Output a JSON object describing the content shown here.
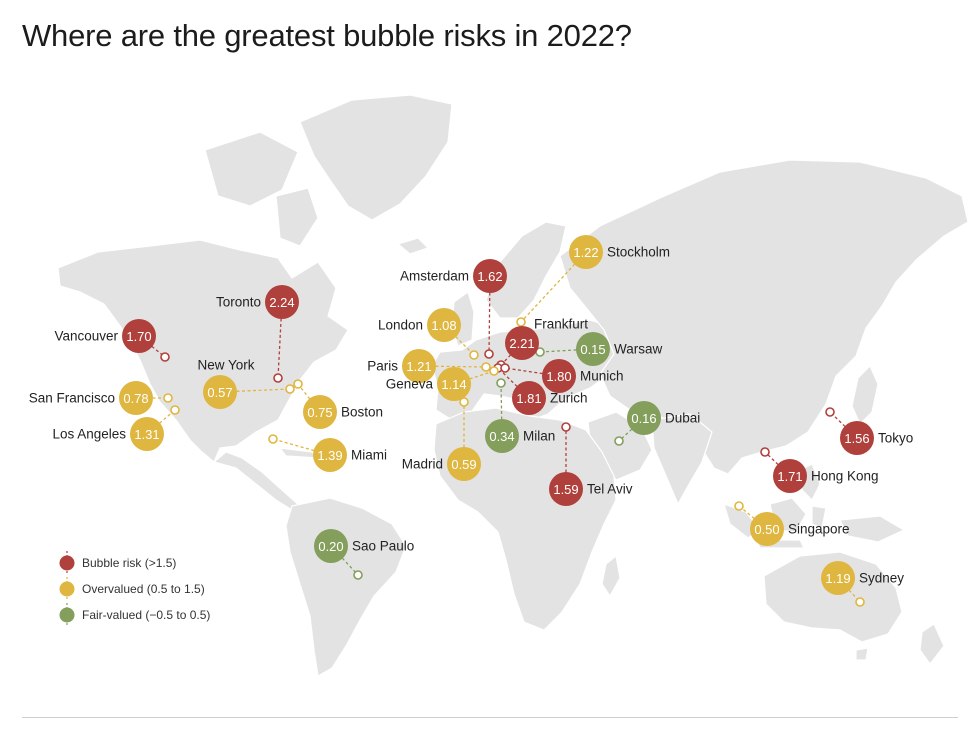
{
  "title": "Where are the greatest bubble risks in 2022?",
  "colors": {
    "bubble": "#b0403c",
    "overvalued": "#dfb63f",
    "fair": "#849e5c",
    "land": "#e3e3e3"
  },
  "legend": [
    {
      "key": "bubble",
      "label": "Bubble risk (>1.5)"
    },
    {
      "key": "overvalued",
      "label": "Overvalued (0.5 to 1.5)"
    },
    {
      "key": "fair",
      "label": "Fair-valued (−0.5 to 0.5)"
    }
  ],
  "cities": [
    {
      "name": "Toronto",
      "value": "2.24",
      "category": "bubble"
    },
    {
      "name": "Frankfurt",
      "value": "2.21",
      "category": "bubble"
    },
    {
      "name": "Zurich",
      "value": "1.81",
      "category": "bubble"
    },
    {
      "name": "Munich",
      "value": "1.80",
      "category": "bubble"
    },
    {
      "name": "Hong Kong",
      "value": "1.71",
      "category": "bubble"
    },
    {
      "name": "Vancouver",
      "value": "1.70",
      "category": "bubble"
    },
    {
      "name": "Amsterdam",
      "value": "1.62",
      "category": "bubble"
    },
    {
      "name": "Tel Aviv",
      "value": "1.59",
      "category": "bubble"
    },
    {
      "name": "Tokyo",
      "value": "1.56",
      "category": "bubble"
    },
    {
      "name": "Miami",
      "value": "1.39",
      "category": "overvalued"
    },
    {
      "name": "Los Angeles",
      "value": "1.31",
      "category": "overvalued"
    },
    {
      "name": "Stockholm",
      "value": "1.22",
      "category": "overvalued"
    },
    {
      "name": "Paris",
      "value": "1.21",
      "category": "overvalued"
    },
    {
      "name": "Sydney",
      "value": "1.19",
      "category": "overvalued"
    },
    {
      "name": "Geneva",
      "value": "1.14",
      "category": "overvalued"
    },
    {
      "name": "London",
      "value": "1.08",
      "category": "overvalued"
    },
    {
      "name": "San Francisco",
      "value": "0.78",
      "category": "overvalued"
    },
    {
      "name": "Boston",
      "value": "0.75",
      "category": "overvalued"
    },
    {
      "name": "Madrid",
      "value": "0.59",
      "category": "overvalued"
    },
    {
      "name": "New York",
      "value": "0.57",
      "category": "overvalued"
    },
    {
      "name": "Singapore",
      "value": "0.50",
      "category": "overvalued"
    },
    {
      "name": "Milan",
      "value": "0.34",
      "category": "fair"
    },
    {
      "name": "Sao Paulo",
      "value": "0.20",
      "category": "fair"
    },
    {
      "name": "Dubai",
      "value": "0.16",
      "category": "fair"
    },
    {
      "name": "Warsaw",
      "value": "0.15",
      "category": "fair"
    }
  ]
}
